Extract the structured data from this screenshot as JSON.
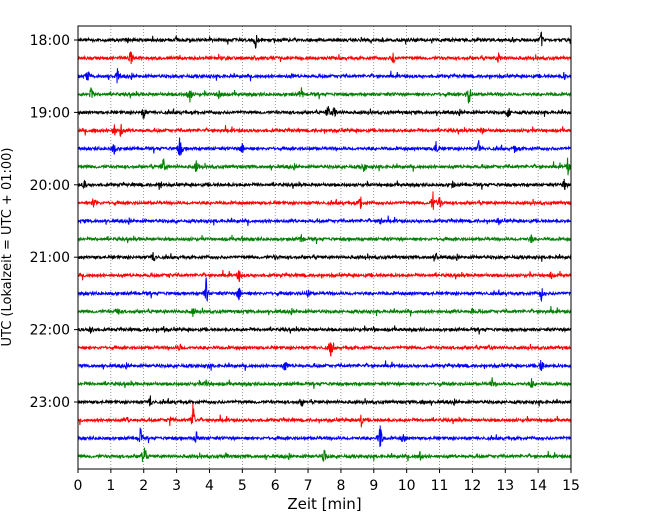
{
  "chart_data": {
    "type": "line",
    "xlabel": "Zeit  [min]",
    "ylabel": "UTC (Lokalzeit = UTC + 01:00)",
    "xlim": [
      0,
      15
    ],
    "x_ticks": [
      "0",
      "1",
      "2",
      "3",
      "4",
      "5",
      "6",
      "7",
      "8",
      "9",
      "10",
      "11",
      "12",
      "13",
      "14",
      "15"
    ],
    "y_ticks": [
      "18:00",
      "19:00",
      "20:00",
      "21:00",
      "22:00",
      "23:00"
    ],
    "grid": "vertical-dotted",
    "row_colors": [
      "#000000",
      "#ff0000",
      "#0000ff",
      "#008000"
    ],
    "rows": [
      {
        "time": "18:00",
        "events": [
          [
            5.4,
            10
          ],
          [
            14.1,
            8
          ],
          [
            1.5,
            3
          ],
          [
            3.0,
            2
          ]
        ]
      },
      {
        "time": "18:15",
        "events": [
          [
            1.6,
            10
          ],
          [
            9.6,
            8
          ],
          [
            12.8,
            6
          ],
          [
            4.5,
            3
          ]
        ]
      },
      {
        "time": "18:30",
        "events": [
          [
            0.3,
            7
          ],
          [
            1.2,
            8
          ],
          [
            14.8,
            5
          ],
          [
            6.5,
            2
          ]
        ]
      },
      {
        "time": "18:45",
        "events": [
          [
            0.4,
            8
          ],
          [
            3.4,
            11
          ],
          [
            4.3,
            8
          ],
          [
            6.8,
            8
          ],
          [
            11.9,
            14
          ]
        ]
      },
      {
        "time": "19:00",
        "events": [
          [
            2.0,
            10
          ],
          [
            7.6,
            9
          ],
          [
            7.8,
            8
          ],
          [
            13.1,
            10
          ]
        ]
      },
      {
        "time": "19:15",
        "events": [
          [
            1.1,
            7
          ],
          [
            1.3,
            9
          ],
          [
            12.3,
            5
          ],
          [
            0.5,
            3
          ]
        ]
      },
      {
        "time": "19:30",
        "events": [
          [
            1.1,
            8
          ],
          [
            3.1,
            15
          ],
          [
            5.0,
            7
          ],
          [
            10.9,
            10
          ],
          [
            12.2,
            9
          ],
          [
            13.3,
            6
          ]
        ]
      },
      {
        "time": "19:45",
        "events": [
          [
            2.6,
            10
          ],
          [
            3.6,
            8
          ],
          [
            8.7,
            8
          ],
          [
            14.9,
            9
          ]
        ]
      },
      {
        "time": "20:00",
        "events": [
          [
            0.2,
            5
          ],
          [
            2.5,
            6
          ],
          [
            11.4,
            4
          ],
          [
            14.8,
            6
          ]
        ]
      },
      {
        "time": "20:15",
        "events": [
          [
            0.5,
            9
          ],
          [
            8.6,
            9
          ],
          [
            10.8,
            11
          ],
          [
            11.0,
            8
          ]
        ]
      },
      {
        "time": "20:30",
        "events": [
          [
            9.2,
            6
          ],
          [
            12.8,
            4
          ],
          [
            3.0,
            2
          ]
        ]
      },
      {
        "time": "20:45",
        "events": [
          [
            6.8,
            6
          ],
          [
            13.8,
            5
          ],
          [
            5.0,
            2
          ]
        ]
      },
      {
        "time": "21:00",
        "events": [
          [
            2.3,
            8
          ],
          [
            10.9,
            5
          ],
          [
            6.0,
            2
          ]
        ]
      },
      {
        "time": "21:15",
        "events": [
          [
            4.9,
            8
          ],
          [
            14.4,
            4
          ],
          [
            2.8,
            2
          ]
        ]
      },
      {
        "time": "21:30",
        "events": [
          [
            3.9,
            16
          ],
          [
            4.9,
            10
          ],
          [
            14.1,
            8
          ],
          [
            7.0,
            4
          ]
        ]
      },
      {
        "time": "21:45",
        "events": [
          [
            1.2,
            6
          ],
          [
            3.5,
            5
          ],
          [
            12.0,
            3
          ]
        ]
      },
      {
        "time": "22:00",
        "events": [
          [
            0.4,
            7
          ],
          [
            2.6,
            4
          ],
          [
            9.0,
            2
          ]
        ]
      },
      {
        "time": "22:15",
        "events": [
          [
            7.7,
            12
          ],
          [
            3.1,
            4
          ],
          [
            12.5,
            2
          ]
        ]
      },
      {
        "time": "22:30",
        "events": [
          [
            6.3,
            8
          ],
          [
            14.1,
            10
          ],
          [
            4.0,
            2
          ]
        ]
      },
      {
        "time": "22:45",
        "events": [
          [
            3.9,
            5
          ],
          [
            12.6,
            5
          ],
          [
            13.8,
            6
          ]
        ]
      },
      {
        "time": "23:00",
        "events": [
          [
            2.2,
            8
          ],
          [
            6.8,
            6
          ],
          [
            10.5,
            3
          ]
        ]
      },
      {
        "time": "23:15",
        "events": [
          [
            2.8,
            7
          ],
          [
            3.5,
            20
          ],
          [
            8.6,
            12
          ],
          [
            1.5,
            3
          ]
        ]
      },
      {
        "time": "23:30",
        "events": [
          [
            1.9,
            12
          ],
          [
            3.6,
            9
          ],
          [
            9.2,
            18
          ],
          [
            9.9,
            6
          ]
        ]
      },
      {
        "time": "23:45",
        "events": [
          [
            2.0,
            20
          ],
          [
            7.5,
            10
          ],
          [
            10.4,
            6
          ],
          [
            4.5,
            3
          ]
        ]
      }
    ]
  }
}
